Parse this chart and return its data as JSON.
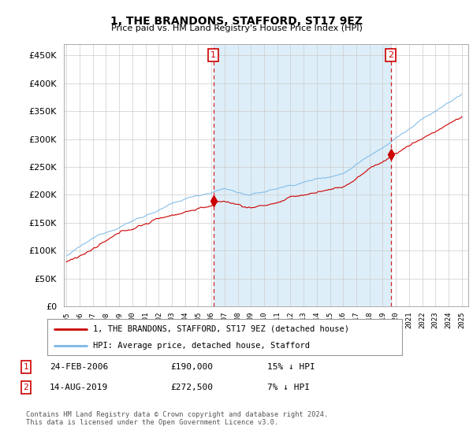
{
  "title": "1, THE BRANDONS, STAFFORD, ST17 9EZ",
  "subtitle": "Price paid vs. HM Land Registry's House Price Index (HPI)",
  "ytick_values": [
    0,
    50000,
    100000,
    150000,
    200000,
    250000,
    300000,
    350000,
    400000,
    450000
  ],
  "ylim": [
    0,
    470000
  ],
  "xlim_start": 1994.8,
  "xlim_end": 2025.5,
  "transaction1": {
    "date_x": 2006.15,
    "price": 190000,
    "label": "1",
    "pct": "15% ↓ HPI",
    "date_str": "24-FEB-2006"
  },
  "transaction2": {
    "date_x": 2019.62,
    "price": 272500,
    "label": "2",
    "pct": "7% ↓ HPI",
    "date_str": "14-AUG-2019"
  },
  "legend_entry1": "1, THE BRANDONS, STAFFORD, ST17 9EZ (detached house)",
  "legend_entry2": "HPI: Average price, detached house, Stafford",
  "footer": "Contains HM Land Registry data © Crown copyright and database right 2024.\nThis data is licensed under the Open Government Licence v3.0.",
  "hpi_color": "#7ab8e8",
  "hpi_fill_color": "#ddeef8",
  "price_color": "#cc0000",
  "marker_color_box": "#cc0000",
  "dashed_line_color": "#cc0000",
  "background_color": "#ffffff",
  "grid_color": "#cccccc"
}
